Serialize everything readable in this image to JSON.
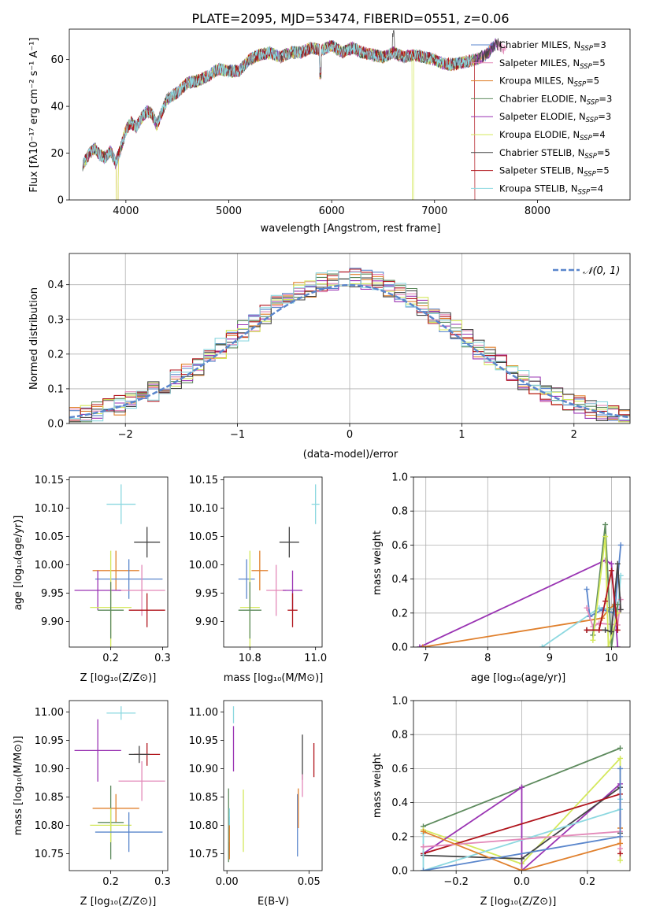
{
  "chart_data": [
    {
      "id": "spectrum",
      "type": "line",
      "title": "PLATE=2095, MJD=53474, FIBERID=0551, z=0.06",
      "xlabel": "wavelength [Angstrom, rest frame]",
      "ylabel": "Flux [fλ10⁻¹⁷ erg cm⁻² s⁻¹ A⁻¹]",
      "xlim": [
        3450,
        8900
      ],
      "ylim": [
        0,
        73
      ],
      "xticks": [
        4000,
        5000,
        6000,
        7000,
        8000
      ],
      "yticks": [
        0,
        20,
        40,
        60
      ],
      "legend_position": "top-right",
      "x": [
        3580,
        3650,
        3700,
        3750,
        3800,
        3850,
        3900,
        3950,
        4000,
        4050,
        4100,
        4150,
        4200,
        4250,
        4300,
        4400,
        4500,
        4600,
        4700,
        4800,
        4900,
        5000,
        5100,
        5200,
        5300,
        5400,
        5500,
        5600,
        5700,
        5800,
        5900,
        6000,
        6100,
        6200,
        6300,
        6400,
        6500,
        6600,
        6700,
        6800,
        6900,
        7000,
        7100,
        7200,
        7300,
        7400,
        7500,
        7600,
        7700,
        7800,
        7900,
        8000,
        8100,
        8200,
        8300,
        8400,
        8500,
        8600,
        8700,
        8800,
        8900
      ],
      "flux": [
        15,
        20,
        22,
        19,
        18,
        21,
        16,
        22,
        30,
        33,
        31,
        35,
        38,
        37,
        32,
        43,
        46,
        50,
        51,
        53,
        56,
        55,
        55,
        60,
        62,
        63,
        61,
        63,
        63,
        65,
        64,
        66,
        63,
        65,
        63,
        62,
        61,
        63,
        61,
        62,
        61,
        60,
        58,
        58,
        59,
        60,
        62,
        67,
        64,
        60,
        58,
        59,
        55,
        56,
        54,
        52,
        52,
        53,
        52,
        52,
        52
      ],
      "series": [
        {
          "name": "Chabrier MILES, N_SSP=3",
          "color": "#5a86cc",
          "n_ssp": "3"
        },
        {
          "name": "Salpeter MILES, N_SSP=5",
          "color": "#e389b9",
          "n_ssp": "5"
        },
        {
          "name": "Kroupa MILES, N_SSP=5",
          "color": "#e0802d",
          "n_ssp": "5"
        },
        {
          "name": "Chabrier ELODIE, N_SSP=3",
          "color": "#5d8a5d",
          "n_ssp": "3"
        },
        {
          "name": "Salpeter ELODIE, N_SSP=3",
          "color": "#9a34b3",
          "n_ssp": "3"
        },
        {
          "name": "Kroupa ELODIE, N_SSP=4",
          "color": "#d4e85c",
          "n_ssp": "4"
        },
        {
          "name": "Chabrier STELIB, N_SSP=5",
          "color": "#444444",
          "n_ssp": "5"
        },
        {
          "name": "Salpeter STELIB, N_SSP=5",
          "color": "#b0141c",
          "n_ssp": "5"
        },
        {
          "name": "Kroupa STELIB, N_SSP=4",
          "color": "#8cd8e0",
          "n_ssp": "4"
        }
      ]
    },
    {
      "id": "residuals",
      "type": "line",
      "xlabel": "(data-model)/error",
      "ylabel": "Normed distribution",
      "xlim": [
        -2.5,
        2.5
      ],
      "ylim": [
        0,
        0.49
      ],
      "xticks": [
        -2,
        -1,
        0,
        1,
        2
      ],
      "yticks": [
        0.0,
        0.1,
        0.2,
        0.3,
        0.4
      ],
      "grid": true,
      "legend_position": "top-right",
      "reference": {
        "name": "𝒩(0, 1)",
        "color": "#5a86cc",
        "style": "dashed"
      },
      "bin_width": 0.1
    },
    {
      "id": "age-z",
      "type": "scatter",
      "xlabel": "Z [log₁₀(Z/Z⊙)]",
      "ylabel": "age  [log₁₀(age/yr)]",
      "xlim": [
        0.12,
        0.31
      ],
      "ylim": [
        9.855,
        10.155
      ],
      "xticks": [
        0.2,
        0.3
      ],
      "yticks": [
        9.9,
        9.95,
        10.0,
        10.05,
        10.1,
        10.15
      ],
      "points": [
        {
          "x": 0.22,
          "y": 10.107,
          "xerr": 0.028,
          "yerr": 0.035,
          "color": "#8cd8e0"
        },
        {
          "x": 0.27,
          "y": 10.04,
          "xerr": 0.025,
          "yerr": 0.027,
          "color": "#444444"
        },
        {
          "x": 0.21,
          "y": 9.99,
          "xerr": 0.045,
          "yerr": 0.035,
          "color": "#e0802d"
        },
        {
          "x": 0.235,
          "y": 9.975,
          "xerr": 0.065,
          "yerr": 0.035,
          "color": "#5a86cc"
        },
        {
          "x": 0.26,
          "y": 9.955,
          "xerr": 0.045,
          "yerr": 0.045,
          "color": "#e389b9"
        },
        {
          "x": 0.175,
          "y": 9.955,
          "xerr": 0.045,
          "yerr": 0.035,
          "color": "#9a34b3"
        },
        {
          "x": 0.2,
          "y": 9.925,
          "xerr": 0.04,
          "yerr": 0.1,
          "color": "#d4e85c"
        },
        {
          "x": 0.2,
          "y": 9.92,
          "xerr": 0.025,
          "yerr": 0.05,
          "color": "#5d8a5d"
        },
        {
          "x": 0.27,
          "y": 9.92,
          "xerr": 0.035,
          "yerr": 0.03,
          "color": "#b0141c"
        }
      ]
    },
    {
      "id": "age-mass",
      "type": "scatter",
      "xlabel": "mass [log₁₀(M/M⊙)]",
      "xlim": [
        10.72,
        11.02
      ],
      "ylim": [
        9.855,
        10.155
      ],
      "xticks": [
        10.8,
        11.0
      ],
      "yticks": [
        9.9,
        9.95,
        10.0,
        10.05,
        10.1,
        10.15
      ],
      "points": [
        {
          "x": 11.0,
          "y": 10.107,
          "xerr": 0.012,
          "yerr": 0.035,
          "color": "#8cd8e0"
        },
        {
          "x": 10.92,
          "y": 10.04,
          "xerr": 0.03,
          "yerr": 0.027,
          "color": "#444444"
        },
        {
          "x": 10.83,
          "y": 9.99,
          "xerr": 0.025,
          "yerr": 0.035,
          "color": "#e0802d"
        },
        {
          "x": 10.79,
          "y": 9.975,
          "xerr": 0.025,
          "yerr": 0.035,
          "color": "#5a86cc"
        },
        {
          "x": 10.88,
          "y": 9.955,
          "xerr": 0.03,
          "yerr": 0.045,
          "color": "#e389b9"
        },
        {
          "x": 10.93,
          "y": 9.955,
          "xerr": 0.03,
          "yerr": 0.035,
          "color": "#9a34b3"
        },
        {
          "x": 10.8,
          "y": 9.925,
          "xerr": 0.03,
          "yerr": 0.1,
          "color": "#d4e85c"
        },
        {
          "x": 10.8,
          "y": 9.92,
          "xerr": 0.035,
          "yerr": 0.05,
          "color": "#5d8a5d"
        },
        {
          "x": 10.93,
          "y": 9.92,
          "xerr": 0.015,
          "yerr": 0.03,
          "color": "#b0141c"
        }
      ]
    },
    {
      "id": "weight-age",
      "type": "line",
      "xlabel": "age  [log₁₀(age/yr)]",
      "ylabel": "mass weight",
      "xlim": [
        6.8,
        10.3
      ],
      "ylim": [
        0,
        1.0
      ],
      "xticks": [
        7,
        8,
        9,
        10
      ],
      "yticks": [
        0.0,
        0.2,
        0.4,
        0.6,
        0.8,
        1.0
      ],
      "grid": true,
      "series": [
        {
          "color": "#9a34b3",
          "x": [
            6.9,
            9.9,
            10.0,
            10.1
          ],
          "y": [
            0.0,
            0.51,
            0.49,
            0.0
          ]
        },
        {
          "color": "#e0802d",
          "x": [
            6.95,
            9.85,
            9.95,
            10.05,
            10.1
          ],
          "y": [
            0.0,
            0.17,
            0.22,
            0.25,
            0.2
          ]
        },
        {
          "color": "#8cd8e0",
          "x": [
            8.88,
            9.8,
            10.1,
            10.15
          ],
          "y": [
            0.0,
            0.23,
            0.22,
            0.42
          ]
        },
        {
          "color": "#5a86cc",
          "x": [
            9.6,
            9.65,
            9.85,
            10.05,
            10.15
          ],
          "y": [
            0.34,
            0.18,
            0.22,
            0.2,
            0.6
          ]
        },
        {
          "color": "#e389b9",
          "x": [
            9.6,
            9.7,
            9.8,
            10.1,
            10.15
          ],
          "y": [
            0.23,
            0.12,
            0.14,
            0.13,
            0.28
          ]
        },
        {
          "color": "#5d8a5d",
          "x": [
            9.7,
            9.9,
            10.0,
            10.1
          ],
          "y": [
            0.07,
            0.72,
            0.0,
            0.25
          ]
        },
        {
          "color": "#d4e85c",
          "x": [
            9.7,
            9.9,
            9.95,
            10.1
          ],
          "y": [
            0.04,
            0.65,
            0.0,
            0.2
          ]
        },
        {
          "color": "#444444",
          "x": [
            9.6,
            9.9,
            10.0,
            10.1,
            10.15
          ],
          "y": [
            0.1,
            0.1,
            0.09,
            0.49,
            0.22
          ]
        },
        {
          "color": "#b0141c",
          "x": [
            9.6,
            9.8,
            9.9,
            10.0,
            10.1
          ],
          "y": [
            0.1,
            0.1,
            0.27,
            0.45,
            0.1
          ]
        }
      ]
    },
    {
      "id": "mass-z",
      "type": "scatter",
      "xlabel": "Z [log₁₀(Z/Z⊙)]",
      "ylabel": "mass [log₁₀(M/M⊙)]",
      "xlim": [
        0.12,
        0.31
      ],
      "ylim": [
        10.72,
        11.02
      ],
      "xticks": [
        0.2,
        0.3
      ],
      "yticks": [
        10.75,
        10.8,
        10.85,
        10.9,
        10.95,
        11.0
      ],
      "points": [
        {
          "x": 0.22,
          "y": 10.998,
          "xerr": 0.028,
          "yerr": 0.012,
          "color": "#8cd8e0"
        },
        {
          "x": 0.27,
          "y": 10.925,
          "xerr": 0.025,
          "yerr": 0.02,
          "color": "#b0141c"
        },
        {
          "x": 0.175,
          "y": 10.932,
          "xerr": 0.045,
          "yerr": 0.055,
          "color": "#9a34b3"
        },
        {
          "x": 0.255,
          "y": 10.925,
          "xerr": 0.02,
          "yerr": 0.015,
          "color": "#444444"
        },
        {
          "x": 0.26,
          "y": 10.878,
          "xerr": 0.045,
          "yerr": 0.035,
          "color": "#e389b9"
        },
        {
          "x": 0.21,
          "y": 10.83,
          "xerr": 0.045,
          "yerr": 0.025,
          "color": "#e0802d"
        },
        {
          "x": 0.2,
          "y": 10.805,
          "xerr": 0.025,
          "yerr": 0.065,
          "color": "#5d8a5d"
        },
        {
          "x": 0.2,
          "y": 10.8,
          "xerr": 0.04,
          "yerr": 0.03,
          "color": "#d4e85c"
        },
        {
          "x": 0.235,
          "y": 10.788,
          "xerr": 0.065,
          "yerr": 0.035,
          "color": "#5a86cc"
        }
      ]
    },
    {
      "id": "mass-ebv",
      "type": "scatter",
      "xlabel": "E(B-V)",
      "xlim": [
        -0.002,
        0.058
      ],
      "ylim": [
        10.72,
        11.02
      ],
      "xticks": [
        0.0,
        0.05
      ],
      "yticks": [
        10.75,
        10.8,
        10.85,
        10.9,
        10.95,
        11.0
      ],
      "points": [
        {
          "x": 0.001,
          "y": 10.8,
          "xerr": 0,
          "yerr": 0.065,
          "color": "#5d8a5d"
        },
        {
          "x": 0.0015,
          "y": 10.78,
          "xerr": 0,
          "yerr": 0.035,
          "color": "#5a86cc"
        },
        {
          "x": 0.0015,
          "y": 10.8,
          "xerr": 0,
          "yerr": 0.03,
          "color": "#8cd8e0"
        },
        {
          "x": 0.0015,
          "y": 10.77,
          "xerr": 0,
          "yerr": 0.03,
          "color": "#e0802d"
        },
        {
          "x": 0.004,
          "y": 10.995,
          "xerr": 0,
          "yerr": 0.015,
          "color": "#8cd8e0"
        },
        {
          "x": 0.004,
          "y": 10.935,
          "xerr": 0,
          "yerr": 0.04,
          "color": "#9a34b3"
        },
        {
          "x": 0.01,
          "y": 10.808,
          "xerr": 0,
          "yerr": 0.055,
          "color": "#d4e85c"
        },
        {
          "x": 0.043,
          "y": 10.8,
          "xerr": 0,
          "yerr": 0.055,
          "color": "#5a86cc"
        },
        {
          "x": 0.0435,
          "y": 10.83,
          "xerr": 0,
          "yerr": 0.035,
          "color": "#e0802d"
        },
        {
          "x": 0.046,
          "y": 10.92,
          "xerr": 0,
          "yerr": 0.04,
          "color": "#444444"
        },
        {
          "x": 0.046,
          "y": 10.87,
          "xerr": 0,
          "yerr": 0.02,
          "color": "#e389b9"
        },
        {
          "x": 0.053,
          "y": 10.915,
          "xerr": 0,
          "yerr": 0.03,
          "color": "#b0141c"
        }
      ]
    },
    {
      "id": "weight-z",
      "type": "line",
      "xlabel": "Z [log₁₀(Z/Z⊙)]",
      "ylabel": "mass weight",
      "xlim": [
        -0.33,
        0.33
      ],
      "ylim": [
        0,
        1.0
      ],
      "xticks": [
        -0.2,
        0.0,
        0.2
      ],
      "yticks": [
        0.0,
        0.2,
        0.4,
        0.6,
        0.8,
        1.0
      ],
      "grid": true,
      "series": [
        {
          "color": "#5d8a5d",
          "x": [
            -0.3,
            0.0,
            0.3
          ],
          "y": [
            0.26,
            0.49,
            0.72
          ]
        },
        {
          "color": "#d4e85c",
          "x": [
            -0.3,
            0.0,
            0.3,
            0.3
          ],
          "y": [
            0.24,
            0.04,
            0.66,
            0.06
          ]
        },
        {
          "color": "#9a34b3",
          "x": [
            -0.3,
            0.0,
            0.0,
            0.3
          ],
          "y": [
            0.1,
            0.49,
            0.0,
            0.51
          ]
        },
        {
          "color": "#444444",
          "x": [
            -0.3,
            0.0,
            0.3,
            0.3
          ],
          "y": [
            0.09,
            0.07,
            0.49,
            0.22
          ]
        },
        {
          "color": "#b0141c",
          "x": [
            -0.3,
            0.3,
            0.3
          ],
          "y": [
            0.1,
            0.45,
            0.1
          ]
        },
        {
          "color": "#8cd8e0",
          "x": [
            -0.3,
            -0.3,
            0.3,
            0.3
          ],
          "y": [
            0.22,
            0.0,
            0.36,
            0.42
          ]
        },
        {
          "color": "#e389b9",
          "x": [
            -0.3,
            0.3,
            0.3
          ],
          "y": [
            0.14,
            0.23,
            0.13
          ]
        },
        {
          "color": "#e0802d",
          "x": [
            -0.3,
            0.0,
            0.3,
            0.3
          ],
          "y": [
            0.23,
            0.0,
            0.16,
            0.25
          ]
        },
        {
          "color": "#5a86cc",
          "x": [
            -0.3,
            0.3,
            0.3
          ],
          "y": [
            0.0,
            0.2,
            0.6
          ]
        }
      ]
    }
  ]
}
